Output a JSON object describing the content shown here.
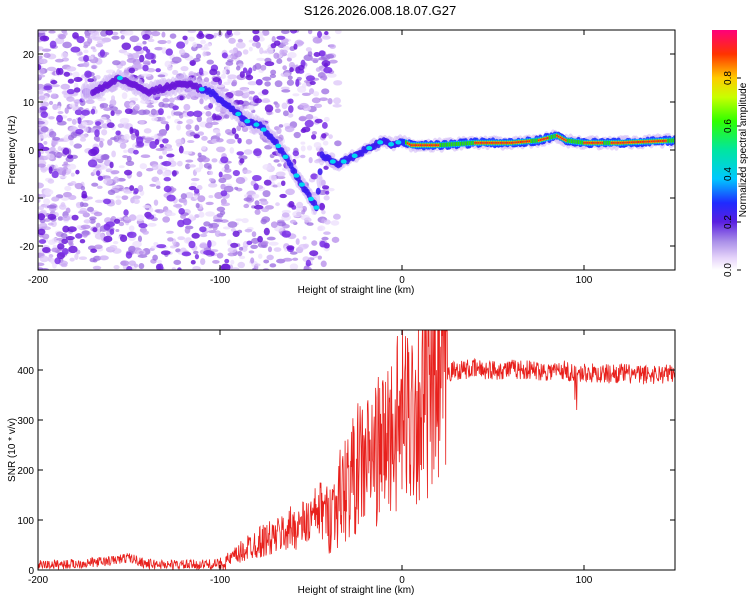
{
  "title": "S126.2026.008.18.07.G27",
  "chart_data": [
    {
      "type": "heatmap",
      "xlabel": "Height of straight line (km)",
      "ylabel": "Frequency (Hz)",
      "xlim": [
        -200,
        150
      ],
      "ylim": [
        -25,
        25
      ],
      "xticks": [
        -200,
        -100,
        0,
        100
      ],
      "yticks": [
        -20,
        -10,
        0,
        10,
        20
      ],
      "colorbar": {
        "label": "Normalized spectral amplitude",
        "range": [
          0,
          1
        ],
        "ticks": [
          "0.0",
          "0.2",
          "0.4",
          "0.6",
          "0.8"
        ]
      },
      "ridge": {
        "x": [
          -170,
          -155,
          -140,
          -120,
          -105,
          -95,
          -85,
          -78,
          -70,
          -63,
          -57,
          -52,
          -47,
          -44,
          -40,
          -35,
          -30,
          -25,
          -20,
          -15,
          -10,
          -5,
          0,
          5,
          20,
          40,
          60,
          75,
          80,
          85,
          90,
          100,
          120,
          150
        ],
        "y": [
          12,
          15,
          12,
          14,
          12,
          9,
          6,
          5,
          2,
          -2,
          -6,
          -9,
          -12,
          -1,
          -2,
          -3,
          -2,
          -1,
          0,
          1,
          2,
          1,
          2,
          1,
          1,
          1.5,
          1.5,
          2,
          2.5,
          3,
          2,
          1.5,
          1.5,
          2
        ]
      }
    },
    {
      "type": "line",
      "xlabel": "Height of straight line (km)",
      "ylabel": "SNR (10 * v/v)",
      "xlim": [
        -200,
        150
      ],
      "ylim": [
        0,
        480
      ],
      "xticks": [
        -200,
        -100,
        0,
        100
      ],
      "yticks": [
        0,
        100,
        200,
        300,
        400
      ],
      "series": [
        {
          "name": "SNR",
          "color": "#e8201c",
          "x": [
            -200,
            -180,
            -160,
            -150,
            -140,
            -120,
            -100,
            -95,
            -90,
            -85,
            -80,
            -75,
            -70,
            -65,
            -60,
            -55,
            -50,
            -45,
            -40,
            -35,
            -30,
            -25,
            -20,
            -15,
            -10,
            -5,
            0,
            5,
            10,
            15,
            20,
            25,
            30,
            40,
            50,
            60,
            70,
            80,
            90,
            95,
            100,
            110,
            120,
            130,
            140,
            150
          ],
          "values": [
            10,
            12,
            18,
            25,
            12,
            10,
            12,
            20,
            30,
            45,
            55,
            60,
            65,
            75,
            85,
            90,
            100,
            120,
            110,
            140,
            170,
            200,
            220,
            230,
            250,
            280,
            300,
            320,
            330,
            340,
            370,
            395,
            400,
            402,
            400,
            402,
            400,
            398,
            400,
            390,
            395,
            392,
            394,
            390,
            392,
            393
          ]
        }
      ]
    }
  ]
}
